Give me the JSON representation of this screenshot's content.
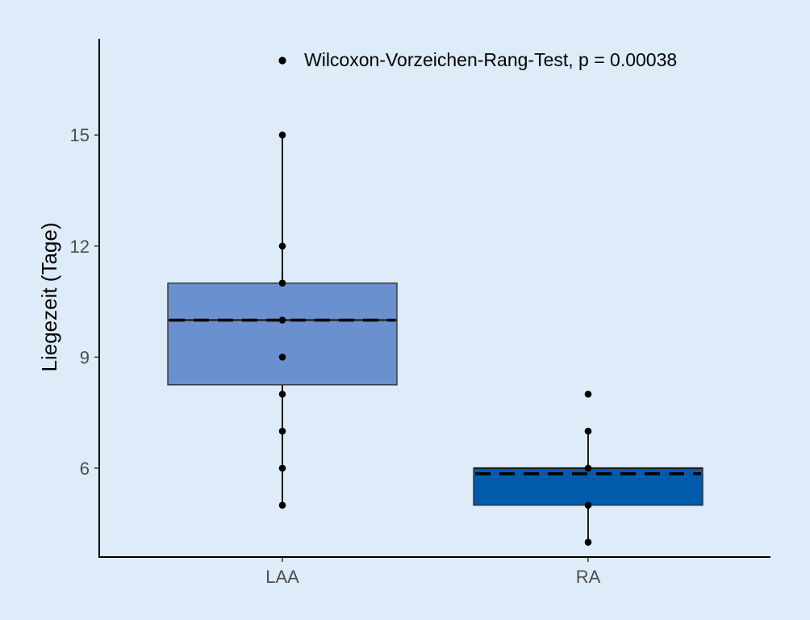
{
  "chart_data": {
    "type": "boxplot",
    "title": "",
    "xlabel": "",
    "ylabel": "Liegezeit (Tage)",
    "ylim": [
      3.6,
      17.6
    ],
    "yticks": [
      6,
      9,
      12,
      15
    ],
    "categories": [
      "LAA",
      "RA"
    ],
    "series": [
      {
        "category": "LAA",
        "color": "#6b90cf",
        "min": 5,
        "q1": 8.25,
        "median": 10,
        "q3": 11,
        "max": 15,
        "mean": 10,
        "points": [
          5,
          6,
          7,
          8,
          9,
          10,
          11,
          12,
          15
        ]
      },
      {
        "category": "RA",
        "color": "#005bab",
        "min": 4,
        "q1": 5,
        "median": 6,
        "q3": 6,
        "max": 7,
        "mean": 5.85,
        "points": [
          4,
          5,
          6,
          7,
          8
        ]
      }
    ],
    "annotation": {
      "text": "Wilcoxon-Vorzeichen-Rang-Test, p = 0.00038",
      "x": "LAA",
      "y": 17
    },
    "grid": false,
    "legend": "none"
  }
}
